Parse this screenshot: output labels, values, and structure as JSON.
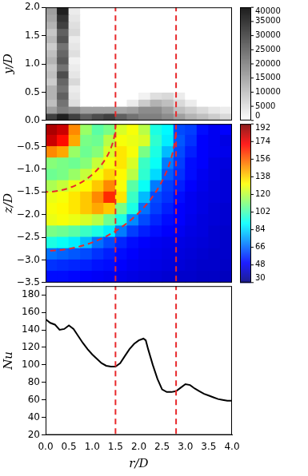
{
  "chart_data": [
    {
      "type": "contour",
      "ylabel": "y/D",
      "tick_labels": "y",
      "grid": false,
      "xlim": [
        0,
        4
      ],
      "ylim": [
        0,
        2
      ],
      "yticks": [
        {
          "value": 0,
          "label": "0.0"
        },
        {
          "value": 0.5,
          "label": "0.5"
        },
        {
          "value": 1,
          "label": "1.0"
        },
        {
          "value": 1.5,
          "label": "1.5"
        },
        {
          "value": 2,
          "label": "2.0"
        }
      ],
      "x_edges": [
        0,
        0.25,
        0.5,
        0.75,
        1,
        1.25,
        1.5,
        1.75,
        2,
        2.25,
        2.5,
        2.75,
        3,
        3.25,
        3.5,
        3.75,
        4
      ],
      "y_edges": [
        0,
        0.125,
        0.25,
        0.375,
        0.5,
        0.625,
        0.75,
        0.875,
        1,
        1.125,
        1.25,
        1.375,
        1.5,
        1.625,
        1.75,
        1.875,
        2
      ],
      "cells": [
        [
          30000,
          35000,
          30000,
          25000,
          28000,
          30000,
          25000,
          22000,
          20000,
          20000,
          18000,
          15000,
          12000,
          10000,
          8000,
          6000
        ],
        [
          15000,
          20000,
          18000,
          15000,
          15000,
          15000,
          14000,
          15000,
          18000,
          18000,
          15000,
          10000,
          8000,
          6000,
          4000,
          3000
        ],
        [
          10000,
          22000,
          5000,
          0,
          0,
          0,
          0,
          3000,
          8000,
          12000,
          10000,
          6000,
          3000,
          0,
          0,
          0
        ],
        [
          12000,
          25000,
          4000,
          0,
          0,
          0,
          0,
          0,
          2000,
          5000,
          6000,
          3000,
          0,
          0,
          0,
          0
        ],
        [
          12000,
          22000,
          3000,
          0,
          0,
          0,
          0,
          0,
          0,
          0,
          0,
          0,
          0,
          0,
          0,
          0
        ],
        [
          8000,
          24000,
          6000,
          0,
          0,
          0,
          0,
          0,
          0,
          0,
          0,
          0,
          0,
          0,
          0,
          0
        ],
        [
          10000,
          28000,
          4000,
          0,
          0,
          0,
          0,
          0,
          0,
          0,
          0,
          0,
          0,
          0,
          0,
          0
        ],
        [
          9000,
          22000,
          3000,
          0,
          0,
          0,
          0,
          0,
          0,
          0,
          0,
          0,
          0,
          0,
          0,
          0
        ],
        [
          12000,
          26000,
          2000,
          0,
          0,
          0,
          0,
          0,
          0,
          0,
          0,
          0,
          0,
          0,
          0,
          0
        ],
        [
          10000,
          24000,
          5000,
          0,
          0,
          0,
          0,
          0,
          0,
          0,
          0,
          0,
          0,
          0,
          0,
          0
        ],
        [
          8000,
          22000,
          4000,
          0,
          0,
          0,
          0,
          0,
          0,
          0,
          0,
          0,
          0,
          0,
          0,
          0
        ],
        [
          11000,
          27000,
          3000,
          0,
          0,
          0,
          0,
          0,
          0,
          0,
          0,
          0,
          0,
          0,
          0,
          0
        ],
        [
          9000,
          25000,
          6000,
          0,
          0,
          0,
          0,
          0,
          0,
          0,
          0,
          0,
          0,
          0,
          0,
          0
        ],
        [
          12000,
          30000,
          5000,
          0,
          0,
          0,
          0,
          0,
          0,
          0,
          0,
          0,
          0,
          0,
          0,
          0
        ],
        [
          14000,
          32000,
          4000,
          0,
          0,
          0,
          0,
          0,
          0,
          0,
          0,
          0,
          0,
          0,
          0,
          0
        ],
        [
          15000,
          35000,
          3000,
          0,
          0,
          0,
          0,
          0,
          0,
          0,
          0,
          0,
          0,
          0,
          0,
          0
        ]
      ],
      "colorbar": {
        "lim": [
          0,
          40000
        ],
        "ticks": [
          0,
          5000,
          10000,
          15000,
          20000,
          25000,
          30000,
          35000,
          40000
        ]
      },
      "vlines": {
        "x": [
          1.5,
          2.8
        ],
        "color": "#e8282b",
        "line_style": "dashed"
      }
    },
    {
      "type": "heatmap",
      "ylabel": "z/D",
      "tick_labels": "y",
      "grid": false,
      "xlim": [
        0,
        4
      ],
      "ylim": [
        -3.5,
        0
      ],
      "yticks": [
        {
          "value": -3.5,
          "label": "−3.5"
        },
        {
          "value": -3,
          "label": "−3.0"
        },
        {
          "value": -2.5,
          "label": "−2.5"
        },
        {
          "value": -2,
          "label": "−2.0"
        },
        {
          "value": -1.5,
          "label": "−1.5"
        },
        {
          "value": -1,
          "label": "−1.0"
        },
        {
          "value": -0.5,
          "label": "−0.5"
        }
      ],
      "x_edges": [
        0,
        0.25,
        0.5,
        0.75,
        1,
        1.25,
        1.5,
        1.75,
        2,
        2.25,
        2.5,
        2.75,
        3,
        3.25,
        3.5,
        3.75,
        4
      ],
      "y_edges": [
        0,
        -0.25,
        -0.5,
        -0.75,
        -1,
        -1.25,
        -1.5,
        -1.75,
        -2,
        -2.25,
        -2.5,
        -2.75,
        -3,
        -3.25,
        -3.5
      ],
      "cells": [
        [
          185,
          180,
          150,
          115,
          105,
          110,
          125,
          130,
          120,
          95,
          90,
          62,
          60,
          52,
          48,
          50
        ],
        [
          180,
          170,
          145,
          110,
          108,
          120,
          130,
          128,
          125,
          98,
          88,
          64,
          58,
          50,
          48,
          46
        ],
        [
          150,
          145,
          115,
          108,
          112,
          125,
          135,
          130,
          110,
          95,
          80,
          62,
          55,
          50,
          48,
          47
        ],
        [
          112,
          110,
          108,
          112,
          122,
          130,
          135,
          125,
          100,
          92,
          70,
          60,
          52,
          50,
          46,
          45
        ],
        [
          108,
          110,
          115,
          122,
          130,
          138,
          132,
          120,
          98,
          85,
          65,
          58,
          52,
          48,
          46,
          44
        ],
        [
          118,
          122,
          128,
          132,
          140,
          150,
          130,
          105,
          92,
          70,
          60,
          55,
          50,
          47,
          45,
          44
        ],
        [
          128,
          130,
          135,
          140,
          150,
          165,
          135,
          100,
          80,
          62,
          58,
          52,
          48,
          46,
          45,
          44
        ],
        [
          130,
          132,
          135,
          140,
          145,
          140,
          110,
          95,
          68,
          60,
          55,
          50,
          48,
          46,
          44,
          43
        ],
        [
          128,
          130,
          128,
          125,
          120,
          108,
          95,
          72,
          62,
          56,
          52,
          50,
          47,
          45,
          44,
          43
        ],
        [
          110,
          108,
          105,
          100,
          95,
          88,
          70,
          60,
          55,
          52,
          50,
          48,
          46,
          45,
          43,
          42
        ],
        [
          95,
          92,
          88,
          80,
          68,
          62,
          56,
          52,
          50,
          48,
          47,
          46,
          45,
          44,
          43,
          42
        ],
        [
          68,
          66,
          64,
          62,
          58,
          55,
          52,
          50,
          48,
          47,
          46,
          45,
          44,
          43,
          42,
          42
        ],
        [
          58,
          57,
          56,
          55,
          53,
          52,
          50,
          48,
          47,
          46,
          45,
          44,
          43,
          42,
          42,
          41
        ],
        [
          52,
          52,
          51,
          50,
          49,
          48,
          47,
          46,
          45,
          44,
          43,
          42,
          42,
          41,
          41,
          40
        ]
      ],
      "colorbar": {
        "lim": [
          30,
          192
        ],
        "ticks": [
          30,
          48,
          66,
          84,
          102,
          120,
          138,
          156,
          174,
          192
        ]
      },
      "vlines": {
        "x": [
          1.5,
          2.8
        ],
        "color": "#e8282b",
        "line_style": "dashed"
      },
      "arcs": {
        "radius": [
          1.5,
          2.8
        ],
        "color": "#e8282b",
        "line_style": "dashed"
      }
    },
    {
      "type": "line",
      "xlabel": "r/D",
      "ylabel": "Nu",
      "grid": false,
      "color": "#000000",
      "xlim": [
        0,
        4
      ],
      "ylim": [
        20,
        190
      ],
      "xticks": [
        {
          "value": 0,
          "label": "0.0"
        },
        {
          "value": 0.5,
          "label": "0.5"
        },
        {
          "value": 1,
          "label": "1.0"
        },
        {
          "value": 1.5,
          "label": "1.5"
        },
        {
          "value": 2,
          "label": "2.0"
        },
        {
          "value": 2.5,
          "label": "2.5"
        },
        {
          "value": 3,
          "label": "3.0"
        },
        {
          "value": 3.5,
          "label": "3.5"
        },
        {
          "value": 4,
          "label": "4.0"
        }
      ],
      "yticks": [
        20,
        40,
        60,
        80,
        100,
        120,
        140,
        160,
        180
      ],
      "x": [
        0,
        0.1,
        0.2,
        0.3,
        0.4,
        0.5,
        0.6,
        0.7,
        0.8,
        0.9,
        1.0,
        1.1,
        1.2,
        1.3,
        1.4,
        1.5,
        1.6,
        1.7,
        1.8,
        1.9,
        2.0,
        2.1,
        2.15,
        2.2,
        2.3,
        2.4,
        2.5,
        2.6,
        2.7,
        2.8,
        2.9,
        3.0,
        3.1,
        3.2,
        3.3,
        3.4,
        3.5,
        3.6,
        3.7,
        3.8,
        3.9,
        4.0
      ],
      "values": [
        152,
        148,
        146,
        140,
        141,
        145,
        141,
        133,
        125,
        118,
        112,
        107,
        102,
        99,
        98,
        98,
        102,
        110,
        118,
        124,
        128,
        130,
        128,
        118,
        100,
        84,
        72,
        69,
        69,
        70,
        74,
        78,
        77,
        73,
        70,
        67,
        65,
        63,
        61,
        60,
        59,
        59
      ],
      "vlines": {
        "x": [
          1.5,
          2.8
        ],
        "color": "#e8282b",
        "line_style": "dashed"
      }
    }
  ]
}
